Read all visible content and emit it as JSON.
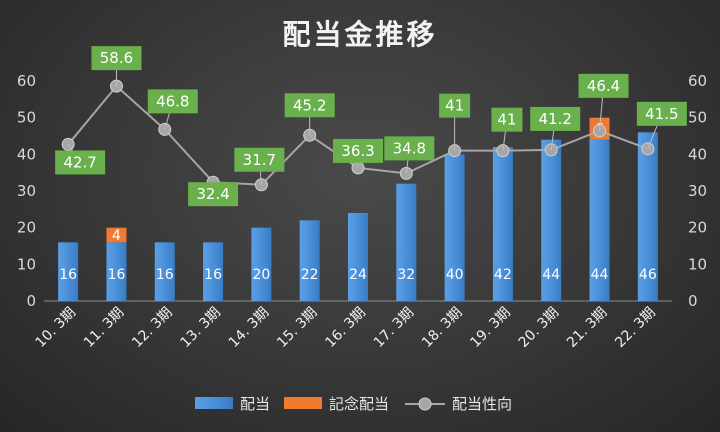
{
  "chart_data": {
    "type": "bar",
    "title": "配当金推移",
    "categories": [
      "10. 3期",
      "11. 3期",
      "12. 3期",
      "13. 3期",
      "14. 3期",
      "15. 3期",
      "16. 3期",
      "17. 3期",
      "18. 3期",
      "19. 3期",
      "20. 3期",
      "21. 3期",
      "22. 3期"
    ],
    "series": [
      {
        "name": "配当",
        "kind": "bar",
        "color": "#4a90d9",
        "values": [
          16,
          16,
          16,
          16,
          20,
          22,
          24,
          32,
          40,
          42,
          44,
          44,
          46
        ]
      },
      {
        "name": "記念配当",
        "kind": "bar-stacked",
        "color": "#f07a30",
        "values": [
          0,
          4,
          0,
          0,
          0,
          0,
          0,
          0,
          0,
          0,
          0,
          6,
          0
        ]
      },
      {
        "name": "配当性向",
        "kind": "line",
        "color": "#a6a6a6",
        "values": [
          42.7,
          58.6,
          46.8,
          32.4,
          31.7,
          45.2,
          36.3,
          34.8,
          41,
          41,
          41.2,
          46.4,
          41.5
        ]
      }
    ],
    "bar_labels": [
      "16",
      "16",
      "16",
      "16",
      "20",
      "22",
      "24",
      "32",
      "40",
      "42",
      "44",
      "44",
      "46"
    ],
    "extra_labels": [
      "",
      "4",
      "",
      "",
      "",
      "",
      "",
      "",
      "",
      "",
      "",
      "6",
      ""
    ],
    "line_labels": [
      "42.7",
      "58.6",
      "46.8",
      "32.4",
      "31.7",
      "45.2",
      "36.3",
      "34.8",
      "41",
      "41",
      "41.2",
      "46.4",
      "41.5"
    ],
    "ylim": [
      0,
      60
    ],
    "y2lim": [
      0,
      60
    ],
    "yticks": [
      "0",
      "10",
      "20",
      "30",
      "40",
      "50",
      "60"
    ],
    "label_box_color": "#6ab04c",
    "legend_position": "bottom",
    "grid": false
  }
}
